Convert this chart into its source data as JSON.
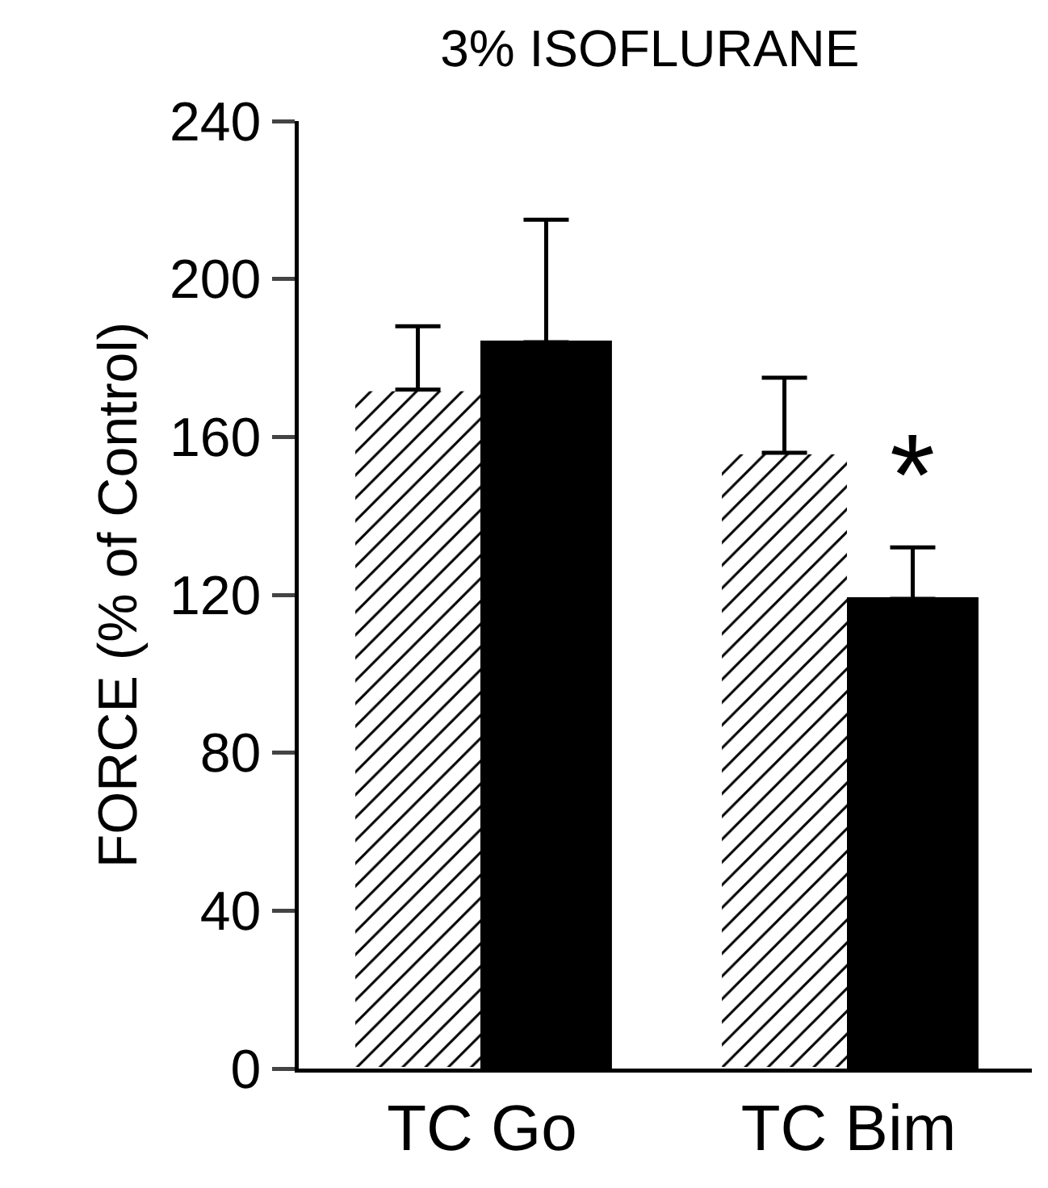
{
  "chart_data": {
    "type": "bar",
    "title": "3% ISOFLURANE",
    "ylabel": "FORCE (% of Control)",
    "categories": [
      "TC Go",
      "TC Bim"
    ],
    "series": [
      {
        "color": "#ffffff",
        "values": [
          172,
          156
        ],
        "errors": [
          [
            172,
            188
          ],
          [
            156,
            175
          ]
        ]
      },
      {
        "color": "#000000",
        "values": [
          184,
          119
        ],
        "errors": [
          [
            184,
            215
          ],
          [
            119,
            132
          ]
        ]
      }
    ],
    "ylim": [
      0,
      240
    ],
    "yticks": [
      0,
      40,
      80,
      120,
      160,
      200,
      240
    ],
    "grid": false,
    "annotations": [
      {
        "text": "*",
        "x": "TC Bim",
        "y": 150
      }
    ]
  }
}
